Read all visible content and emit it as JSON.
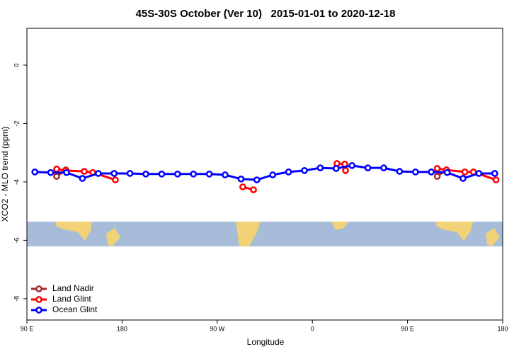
{
  "chart_data": {
    "type": "line",
    "title": "45S-30S October (Ver 10)   2015-01-01 to 2020-12-18",
    "x_label": "Longitude",
    "y_label": "XCO2 - MLO trend (ppm)",
    "xlim": [
      90,
      540
    ],
    "xticks": [
      {
        "value": 90,
        "label": "90 E"
      },
      180,
      {
        "value": 270,
        "label": "90 W"
      },
      {
        "value": 360,
        "label": "0"
      },
      {
        "value": 450,
        "label": "90 E"
      },
      {
        "value": 540,
        "label": "180"
      }
    ],
    "ylim": [
      -8.73,
      1.26
    ],
    "yticks": [
      0,
      -2,
      -4,
      -6,
      -8
    ],
    "legend": "bottom-left",
    "series": [
      {
        "name": "Land Nadir",
        "color": "#a52a2a",
        "x": [
          118.1,
          126.8,
          null,
          478.1,
          486.8
        ],
        "values": [
          -3.81,
          -3.59,
          null,
          -3.81,
          -3.59
        ]
      },
      {
        "name": "Land Glint",
        "color": "#ff0000",
        "x": [
          118.1,
          126.8,
          144.2,
          152.3,
          173.7,
          null,
          294.2,
          304.3,
          null,
          383.3,
          390.7,
          391.4,
          null,
          478.1,
          486.8,
          504.2,
          512.3,
          533.7
        ],
        "values": [
          -3.56,
          -3.61,
          -3.64,
          -3.68,
          -3.93,
          null,
          -4.17,
          -4.27,
          null,
          -3.37,
          -3.39,
          -3.61,
          null,
          -3.54,
          -3.59,
          -3.66,
          -3.66,
          -3.93
        ]
      },
      {
        "name": "Ocean Glint",
        "color": "#0000ff",
        "x": [
          97.5,
          112.5,
          127.5,
          142.5,
          157.5,
          172.5,
          187.5,
          202.5,
          217.5,
          232.5,
          247.5,
          262.5,
          277.5,
          292.5,
          307.5,
          322.5,
          337.5,
          352.5,
          367.5,
          382.5,
          397.5,
          412.5,
          427.5,
          442.5,
          457.5,
          472.5,
          487.5,
          502.5,
          517.5,
          532.5
        ],
        "values": [
          -3.66,
          -3.68,
          -3.68,
          -3.88,
          -3.71,
          -3.71,
          -3.71,
          -3.73,
          -3.73,
          -3.73,
          -3.73,
          -3.73,
          -3.76,
          -3.9,
          -3.93,
          -3.76,
          -3.66,
          -3.61,
          -3.52,
          -3.54,
          -3.44,
          -3.52,
          -3.52,
          -3.64,
          -3.66,
          -3.66,
          -3.68,
          -3.88,
          -3.71,
          -3.71
        ]
      }
    ]
  }
}
